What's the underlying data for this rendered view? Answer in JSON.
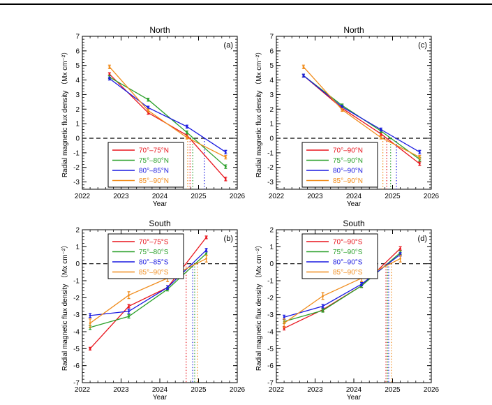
{
  "chart_data": [
    {
      "type": "line",
      "panel": "(a)",
      "title": "North",
      "xlabel": "Year",
      "ylabel": "Radial magnetic flux density （Mx cm⁻²）",
      "xlim": [
        2022,
        2026
      ],
      "ylim": [
        -3.5,
        7
      ],
      "xticks": [
        2022,
        2023,
        2024,
        2025,
        2026
      ],
      "yticks": [
        -3,
        -2,
        -1,
        0,
        1,
        2,
        3,
        4,
        5,
        6,
        7
      ],
      "legend_placement": "bottom-left",
      "series": [
        {
          "name": "70°–75°N",
          "color": "#e8141c",
          "x": [
            2022.7,
            2023.7,
            2024.7,
            2025.7
          ],
          "y": [
            4.4,
            1.75,
            0.2,
            -2.8
          ],
          "err": [
            0.1,
            0.1,
            0.1,
            0.12
          ],
          "zero_cross": 2024.78
        },
        {
          "name": "75°–80°N",
          "color": "#2aa02a",
          "x": [
            2022.7,
            2023.7,
            2024.7,
            2025.7
          ],
          "y": [
            4.2,
            2.65,
            0.4,
            -1.95
          ],
          "err": [
            0.1,
            0.1,
            0.1,
            0.12
          ],
          "zero_cross": 2024.85
        },
        {
          "name": "80°–85°N",
          "color": "#1a1ae0",
          "x": [
            2022.7,
            2023.7,
            2024.7,
            2025.7
          ],
          "y": [
            4.1,
            2.1,
            0.8,
            -0.95
          ],
          "err": [
            0.1,
            0.1,
            0.1,
            0.12
          ],
          "zero_cross": 2025.15
        },
        {
          "name": "85°–90°N",
          "color": "#f08c1c",
          "x": [
            2022.7,
            2023.7,
            2024.7,
            2025.7
          ],
          "y": [
            4.9,
            1.9,
            0.05,
            -1.3
          ],
          "err": [
            0.12,
            0.1,
            0.1,
            0.12
          ],
          "zero_cross": 2024.72
        }
      ]
    },
    {
      "type": "line",
      "panel": "(c)",
      "title": "North",
      "xlabel": "Year",
      "ylabel": "Radial magnetic flux density （Mx cm⁻²）",
      "xlim": [
        2022,
        2026
      ],
      "ylim": [
        -3.5,
        7
      ],
      "xticks": [
        2022,
        2023,
        2024,
        2025,
        2026
      ],
      "yticks": [
        -3,
        -2,
        -1,
        0,
        1,
        2,
        3,
        4,
        5,
        6,
        7
      ],
      "legend_placement": "bottom-left",
      "series": [
        {
          "name": "70°–90°N",
          "color": "#e8141c",
          "x": [
            2022.7,
            2023.7,
            2024.7,
            2025.7
          ],
          "y": [
            4.3,
            2.05,
            0.3,
            -1.75
          ],
          "err": [
            0.1,
            0.1,
            0.1,
            0.12
          ],
          "zero_cross": 2024.85
        },
        {
          "name": "75°–90°N",
          "color": "#2aa02a",
          "x": [
            2022.7,
            2023.7,
            2024.7,
            2025.7
          ],
          "y": [
            4.3,
            2.25,
            0.5,
            -1.45
          ],
          "err": [
            0.1,
            0.1,
            0.1,
            0.12
          ],
          "zero_cross": 2024.95
        },
        {
          "name": "80°–90°N",
          "color": "#1a1ae0",
          "x": [
            2022.7,
            2023.7,
            2024.7,
            2025.7
          ],
          "y": [
            4.3,
            2.15,
            0.6,
            -0.95
          ],
          "err": [
            0.1,
            0.1,
            0.1,
            0.12
          ],
          "zero_cross": 2025.1
        },
        {
          "name": "85°–90°N",
          "color": "#f08c1c",
          "x": [
            2022.7,
            2023.7,
            2024.7,
            2025.7
          ],
          "y": [
            4.9,
            1.95,
            0.05,
            -1.3
          ],
          "err": [
            0.12,
            0.1,
            0.1,
            0.12
          ],
          "zero_cross": 2024.75
        }
      ]
    },
    {
      "type": "line",
      "panel": "(b)",
      "title": "South",
      "xlabel": "Year",
      "ylabel": "Radial magnetic flux density （Mx cm⁻²）",
      "xlim": [
        2022,
        2026
      ],
      "ylim": [
        -7,
        2
      ],
      "xticks": [
        2022,
        2023,
        2024,
        2025,
        2026
      ],
      "yticks": [
        -7,
        -6,
        -5,
        -4,
        -3,
        -2,
        -1,
        0,
        1,
        2
      ],
      "legend_placement": "top-left",
      "series": [
        {
          "name": "70°–75°S",
          "color": "#e8141c",
          "x": [
            2022.2,
            2023.2,
            2024.2,
            2025.2
          ],
          "y": [
            -5.0,
            -2.5,
            -1.4,
            1.55
          ],
          "err": [
            0.08,
            0.1,
            0.1,
            0.08
          ],
          "zero_cross": 2024.68
        },
        {
          "name": "75°–80°S",
          "color": "#2aa02a",
          "x": [
            2022.2,
            2023.2,
            2024.2,
            2025.2
          ],
          "y": [
            -3.75,
            -3.1,
            -1.5,
            0.6
          ],
          "err": [
            0.12,
            0.1,
            0.1,
            0.1
          ],
          "zero_cross": 2024.9
        },
        {
          "name": "80°–85°S",
          "color": "#1a1ae0",
          "x": [
            2022.2,
            2023.2,
            2024.2,
            2025.2
          ],
          "y": [
            -3.05,
            -2.8,
            -1.4,
            0.8
          ],
          "err": [
            0.12,
            0.12,
            0.1,
            0.1
          ],
          "zero_cross": 2024.85
        },
        {
          "name": "85°–90°S",
          "color": "#f08c1c",
          "x": [
            2022.2,
            2023.2,
            2024.2,
            2025.2
          ],
          "y": [
            -3.5,
            -1.85,
            -0.85,
            0.3
          ],
          "err": [
            0.25,
            0.2,
            0.2,
            0.2
          ],
          "zero_cross": 2024.97
        }
      ]
    },
    {
      "type": "line",
      "panel": "(d)",
      "title": "South",
      "xlabel": "Year",
      "ylabel": "Radial magnetic flux density （Mx cm⁻²）",
      "xlim": [
        2022,
        2026
      ],
      "ylim": [
        -7,
        2
      ],
      "xticks": [
        2022,
        2023,
        2024,
        2025,
        2026
      ],
      "yticks": [
        -7,
        -6,
        -5,
        -4,
        -3,
        -2,
        -1,
        0,
        1,
        2
      ],
      "legend_placement": "top-left",
      "series": [
        {
          "name": "70°–90°S",
          "color": "#e8141c",
          "x": [
            2022.2,
            2023.2,
            2024.2,
            2025.2
          ],
          "y": [
            -3.8,
            -2.7,
            -1.3,
            0.9
          ],
          "err": [
            0.1,
            0.1,
            0.1,
            0.1
          ],
          "zero_cross": 2024.83
        },
        {
          "name": "75°–90°S",
          "color": "#2aa02a",
          "x": [
            2022.2,
            2023.2,
            2024.2,
            2025.2
          ],
          "y": [
            -3.4,
            -2.75,
            -1.3,
            0.65
          ],
          "err": [
            0.12,
            0.1,
            0.1,
            0.1
          ],
          "zero_cross": 2024.87
        },
        {
          "name": "80°–90°S",
          "color": "#1a1ae0",
          "x": [
            2022.2,
            2023.2,
            2024.2,
            2025.2
          ],
          "y": [
            -3.15,
            -2.5,
            -1.2,
            0.55
          ],
          "err": [
            0.12,
            0.1,
            0.1,
            0.1
          ],
          "zero_cross": 2024.9
        },
        {
          "name": "85°–90°S",
          "color": "#f08c1c",
          "x": [
            2022.2,
            2023.2,
            2024.2,
            2025.2
          ],
          "y": [
            -3.5,
            -1.9,
            -0.85,
            0.3
          ],
          "err": [
            0.25,
            0.2,
            0.2,
            0.2
          ],
          "zero_cross": 2024.97
        }
      ]
    }
  ]
}
